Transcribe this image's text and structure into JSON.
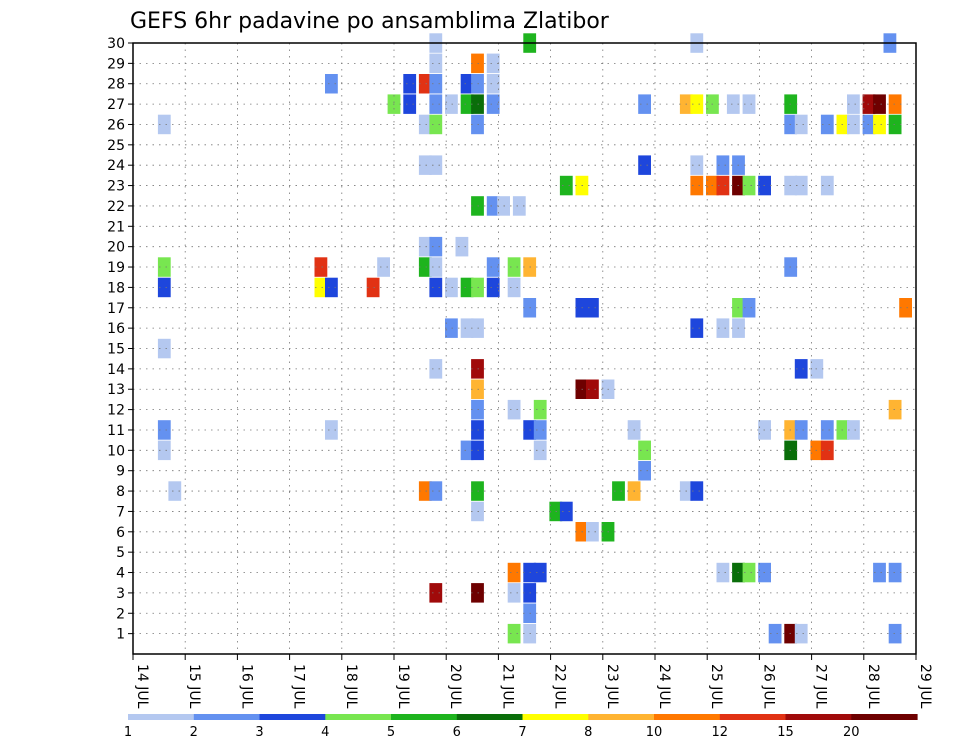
{
  "chart_data": {
    "type": "heatmap",
    "title": "GEFS 6hr padavine po ansamblima Zlatibor",
    "y_ticks": [
      "1",
      "2",
      "3",
      "4",
      "5",
      "6",
      "7",
      "8",
      "9",
      "10",
      "11",
      "12",
      "13",
      "14",
      "15",
      "16",
      "17",
      "18",
      "19",
      "20",
      "21",
      "22",
      "23",
      "24",
      "25",
      "26",
      "27",
      "28",
      "29",
      "30"
    ],
    "x_ticks": [
      "14 JUL",
      "15 JUL",
      "16 JUL",
      "17 JUL",
      "18 JUL",
      "19 JUL",
      "20 JUL",
      "21 JUL",
      "22 JUL",
      "23 JUL",
      "24 JUL",
      "25 JUL",
      "26 JUL",
      "27 JUL",
      "28 JUL",
      "29 JUL"
    ],
    "colorbar": {
      "colors": [
        "#b4c8f0",
        "#6491f0",
        "#1e46dc",
        "#78e650",
        "#1eb41e",
        "#0a6e0a",
        "#ffff00",
        "#ffb432",
        "#ff7800",
        "#e13214",
        "#a00a0a",
        "#6e0000"
      ],
      "labels": [
        "1",
        "2",
        "3",
        "4",
        "5",
        "6",
        "7",
        "8",
        "10",
        "12",
        "15",
        "20"
      ]
    },
    "grid": true,
    "cells": [
      [
        19.8,
        30,
        1
      ],
      [
        21.6,
        30,
        5
      ],
      [
        24.8,
        30,
        1
      ],
      [
        28.5,
        30,
        2
      ],
      [
        19.8,
        29,
        1
      ],
      [
        20.6,
        29,
        9
      ],
      [
        20.9,
        29,
        1
      ],
      [
        17.8,
        28,
        2
      ],
      [
        19.3,
        28,
        3
      ],
      [
        19.6,
        28,
        10
      ],
      [
        19.8,
        28,
        2
      ],
      [
        20.4,
        28,
        3
      ],
      [
        20.6,
        28,
        2
      ],
      [
        20.9,
        28,
        1
      ],
      [
        19.0,
        27,
        4
      ],
      [
        19.3,
        27,
        3
      ],
      [
        19.8,
        27,
        2
      ],
      [
        20.1,
        27,
        1
      ],
      [
        20.4,
        27,
        5
      ],
      [
        20.6,
        27,
        6
      ],
      [
        20.9,
        27,
        2
      ],
      [
        23.8,
        27,
        2
      ],
      [
        24.6,
        27,
        8
      ],
      [
        24.8,
        27,
        7
      ],
      [
        25.1,
        27,
        4
      ],
      [
        25.5,
        27,
        1
      ],
      [
        25.8,
        27,
        1
      ],
      [
        26.6,
        27,
        5
      ],
      [
        27.8,
        27,
        1
      ],
      [
        28.1,
        27,
        11
      ],
      [
        28.3,
        27,
        12
      ],
      [
        28.6,
        27,
        9
      ],
      [
        14.6,
        26,
        1
      ],
      [
        19.6,
        26,
        1
      ],
      [
        19.8,
        26,
        4
      ],
      [
        20.6,
        26,
        2
      ],
      [
        26.6,
        26,
        2
      ],
      [
        26.8,
        26,
        1
      ],
      [
        27.3,
        26,
        2
      ],
      [
        27.6,
        26,
        7
      ],
      [
        27.8,
        26,
        1
      ],
      [
        28.1,
        26,
        2
      ],
      [
        28.3,
        26,
        7
      ],
      [
        28.6,
        26,
        5
      ],
      [
        19.6,
        24,
        1
      ],
      [
        19.8,
        24,
        1
      ],
      [
        23.8,
        24,
        3
      ],
      [
        24.8,
        24,
        1
      ],
      [
        25.3,
        24,
        2
      ],
      [
        25.6,
        24,
        2
      ],
      [
        22.3,
        23,
        5
      ],
      [
        22.6,
        23,
        7
      ],
      [
        24.8,
        23,
        9
      ],
      [
        25.1,
        23,
        9
      ],
      [
        25.3,
        23,
        10
      ],
      [
        25.6,
        23,
        12
      ],
      [
        25.8,
        23,
        4
      ],
      [
        26.1,
        23,
        3
      ],
      [
        26.6,
        23,
        1
      ],
      [
        26.8,
        23,
        1
      ],
      [
        27.3,
        23,
        1
      ],
      [
        20.6,
        22,
        5
      ],
      [
        20.9,
        22,
        2
      ],
      [
        21.1,
        22,
        1
      ],
      [
        21.4,
        22,
        1
      ],
      [
        19.6,
        20,
        1
      ],
      [
        19.8,
        20,
        2
      ],
      [
        20.3,
        20,
        1
      ],
      [
        14.6,
        19,
        4
      ],
      [
        17.6,
        19,
        10
      ],
      [
        18.8,
        19,
        1
      ],
      [
        19.6,
        19,
        5
      ],
      [
        19.8,
        19,
        1
      ],
      [
        20.9,
        19,
        2
      ],
      [
        21.3,
        19,
        4
      ],
      [
        21.6,
        19,
        8
      ],
      [
        26.6,
        19,
        2
      ],
      [
        14.6,
        18,
        3
      ],
      [
        17.6,
        18,
        7
      ],
      [
        17.8,
        18,
        3
      ],
      [
        18.6,
        18,
        10
      ],
      [
        19.8,
        18,
        3
      ],
      [
        20.1,
        18,
        1
      ],
      [
        20.4,
        18,
        5
      ],
      [
        20.6,
        18,
        4
      ],
      [
        20.9,
        18,
        3
      ],
      [
        21.3,
        18,
        1
      ],
      [
        21.6,
        17,
        2
      ],
      [
        22.6,
        17,
        3
      ],
      [
        22.8,
        17,
        3
      ],
      [
        25.6,
        17,
        4
      ],
      [
        25.8,
        17,
        2
      ],
      [
        28.8,
        17,
        9
      ],
      [
        20.1,
        16,
        2
      ],
      [
        20.4,
        16,
        1
      ],
      [
        20.6,
        16,
        1
      ],
      [
        24.8,
        16,
        3
      ],
      [
        25.3,
        16,
        1
      ],
      [
        25.6,
        16,
        1
      ],
      [
        14.6,
        15,
        1
      ],
      [
        19.8,
        14,
        1
      ],
      [
        20.6,
        14,
        11
      ],
      [
        26.8,
        14,
        3
      ],
      [
        27.1,
        14,
        1
      ],
      [
        20.6,
        13,
        8
      ],
      [
        22.6,
        13,
        12
      ],
      [
        22.8,
        13,
        11
      ],
      [
        23.1,
        13,
        1
      ],
      [
        20.6,
        12,
        2
      ],
      [
        21.3,
        12,
        1
      ],
      [
        21.8,
        12,
        4
      ],
      [
        28.6,
        12,
        8
      ],
      [
        14.6,
        11,
        2
      ],
      [
        17.8,
        11,
        1
      ],
      [
        20.6,
        11,
        3
      ],
      [
        21.6,
        11,
        3
      ],
      [
        21.8,
        11,
        2
      ],
      [
        23.6,
        11,
        1
      ],
      [
        26.1,
        11,
        1
      ],
      [
        26.6,
        11,
        8
      ],
      [
        26.8,
        11,
        2
      ],
      [
        27.3,
        11,
        2
      ],
      [
        27.6,
        11,
        4
      ],
      [
        27.8,
        11,
        1
      ],
      [
        14.6,
        10,
        1
      ],
      [
        20.4,
        10,
        2
      ],
      [
        20.6,
        10,
        3
      ],
      [
        21.8,
        10,
        1
      ],
      [
        23.8,
        10,
        4
      ],
      [
        26.6,
        10,
        6
      ],
      [
        27.1,
        10,
        9
      ],
      [
        27.3,
        10,
        10
      ],
      [
        23.8,
        9,
        2
      ],
      [
        14.8,
        8,
        1
      ],
      [
        19.6,
        8,
        9
      ],
      [
        19.8,
        8,
        2
      ],
      [
        20.6,
        8,
        5
      ],
      [
        23.3,
        8,
        5
      ],
      [
        23.6,
        8,
        8
      ],
      [
        24.6,
        8,
        1
      ],
      [
        24.8,
        8,
        3
      ],
      [
        20.6,
        7,
        1
      ],
      [
        22.1,
        7,
        5
      ],
      [
        22.3,
        7,
        3
      ],
      [
        22.6,
        6,
        9
      ],
      [
        22.8,
        6,
        1
      ],
      [
        23.1,
        6,
        5
      ],
      [
        21.3,
        4,
        9
      ],
      [
        21.6,
        4,
        3
      ],
      [
        21.8,
        4,
        3
      ],
      [
        25.3,
        4,
        1
      ],
      [
        25.6,
        4,
        6
      ],
      [
        25.8,
        4,
        4
      ],
      [
        26.1,
        4,
        2
      ],
      [
        28.3,
        4,
        2
      ],
      [
        28.6,
        4,
        2
      ],
      [
        19.8,
        3,
        11
      ],
      [
        20.6,
        3,
        12
      ],
      [
        21.3,
        3,
        1
      ],
      [
        21.6,
        3,
        3
      ],
      [
        21.6,
        2,
        2
      ],
      [
        21.3,
        1,
        4
      ],
      [
        21.6,
        1,
        1
      ],
      [
        26.3,
        1,
        2
      ],
      [
        26.6,
        1,
        12
      ],
      [
        26.8,
        1,
        1
      ],
      [
        28.6,
        1,
        2
      ]
    ]
  }
}
